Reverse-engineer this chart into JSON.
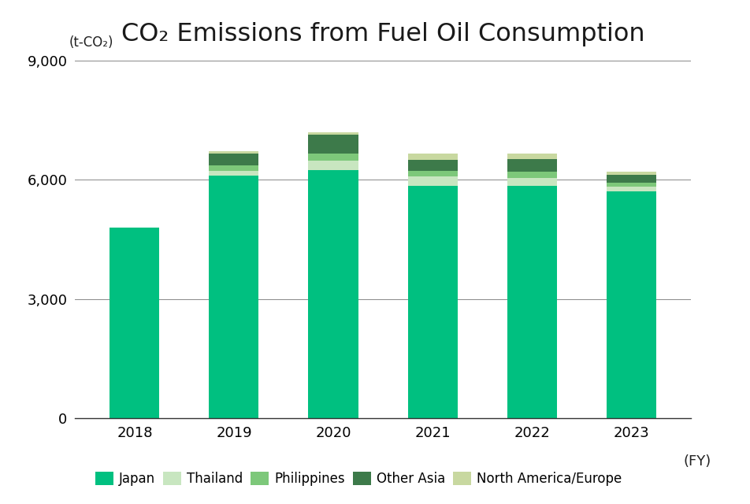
{
  "years": [
    "2018",
    "2019",
    "2020",
    "2021",
    "2022",
    "2023"
  ],
  "series": {
    "Japan": [
      4800,
      6100,
      6250,
      5850,
      5850,
      5700
    ],
    "Thailand": [
      0,
      120,
      230,
      230,
      200,
      130
    ],
    "Philippines": [
      0,
      140,
      180,
      150,
      150,
      100
    ],
    "Other Asia": [
      0,
      300,
      470,
      280,
      330,
      200
    ],
    "North America/Europe": [
      0,
      50,
      70,
      140,
      130,
      80
    ]
  },
  "colors": {
    "Japan": "#00C080",
    "Thailand": "#C8E6C0",
    "Philippines": "#7DC87A",
    "Other Asia": "#3D7A4A",
    "North America/Europe": "#C8D8A0"
  },
  "title": "CO₂ Emissions from Fuel Oil Consumption",
  "ylabel": "(t-CO₂)",
  "xlabel_suffix": "(FY)",
  "ylim": [
    0,
    9000
  ],
  "yticks": [
    0,
    3000,
    6000,
    9000
  ],
  "background_color": "#ffffff",
  "title_fontsize": 23,
  "axis_fontsize": 13,
  "legend_fontsize": 12
}
